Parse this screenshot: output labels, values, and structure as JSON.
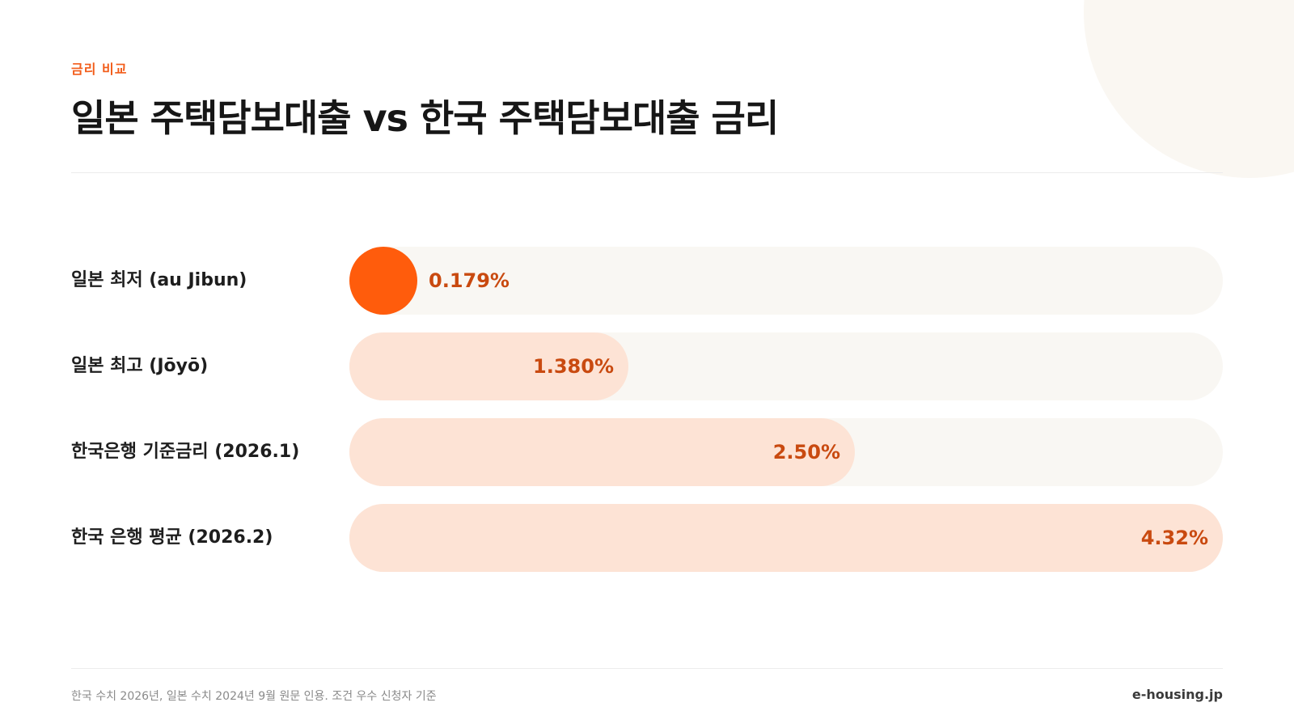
{
  "eyebrow": "금리 비교",
  "title": "일본 주택담보대출 vs 한국 주택담보대출 금리",
  "chart_data": {
    "type": "bar",
    "orientation": "horizontal",
    "categories": [
      "일본 최저 (au Jibun)",
      "일본 최고 (Jōyō)",
      "한국은행 기준금리 (2026.1)",
      "한국 은행 평균 (2026.2)"
    ],
    "values": [
      0.179,
      1.38,
      2.5,
      4.32
    ],
    "value_labels": [
      "0.179%",
      "1.380%",
      "2.50%",
      "4.32%"
    ],
    "xlim": [
      0,
      4.32
    ],
    "highlight_index": 0,
    "grid": false,
    "colors": {
      "highlight": "#ff5c0c",
      "bar": "#fde3d5",
      "track": "#f9f7f3",
      "value_text": "#c94a10"
    }
  },
  "footer": {
    "note": "한국 수치 2026년, 일본 수치 2024년 9월 원문 인용. 조건 우수 신청자 기준",
    "brand": "e-housing.jp"
  }
}
